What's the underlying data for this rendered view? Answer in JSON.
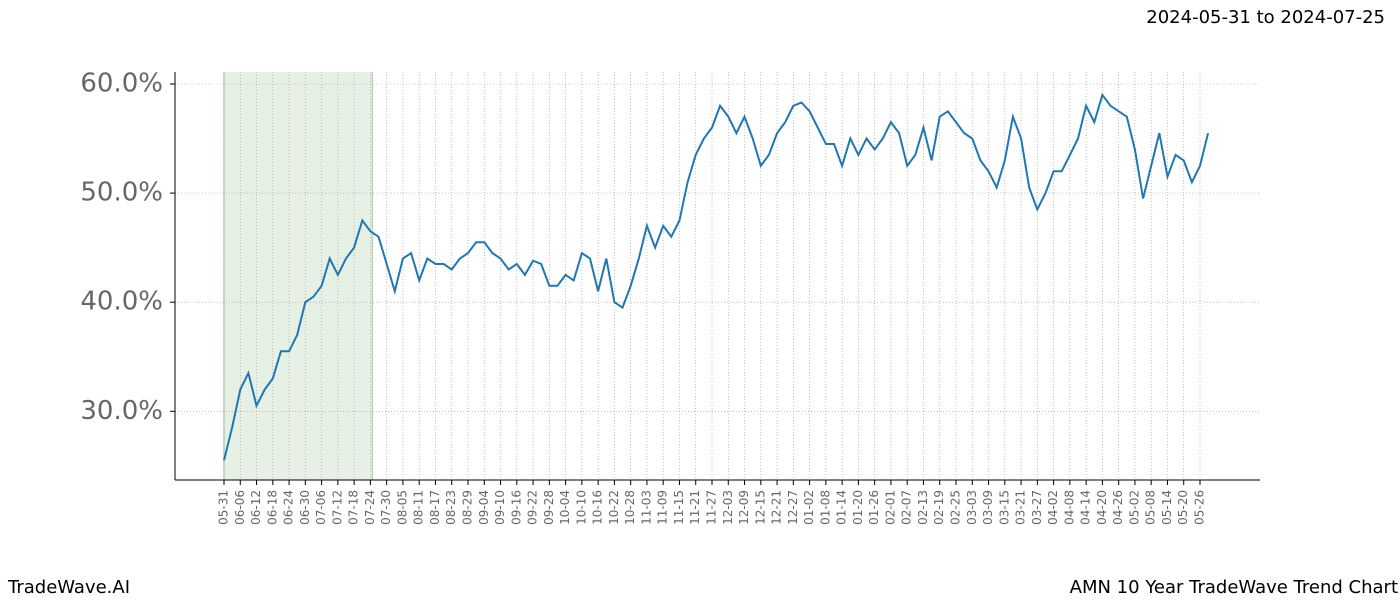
{
  "chart_data": {
    "type": "line",
    "title": "AMN 10 Year TradeWave Trend Chart",
    "subtitle": "2024-05-31 to 2024-07-25",
    "watermark": "TradeWave.AI",
    "categories": [
      "05-31",
      null,
      "06-06",
      null,
      "06-12",
      null,
      "06-18",
      null,
      "06-24",
      null,
      "06-30",
      null,
      "07-06",
      null,
      "07-12",
      null,
      "07-18",
      null,
      "07-24",
      null,
      "07-30",
      null,
      "08-05",
      null,
      "08-11",
      null,
      "08-17",
      null,
      "08-23",
      null,
      "08-29",
      null,
      "09-04",
      null,
      "09-10",
      null,
      "09-16",
      null,
      "09-22",
      null,
      "09-28",
      null,
      "10-04",
      null,
      "10-10",
      null,
      "10-16",
      null,
      "10-22",
      null,
      "10-28",
      null,
      "11-03",
      null,
      "11-09",
      null,
      "11-15",
      null,
      "11-21",
      null,
      "11-27",
      null,
      "12-03",
      null,
      "12-09",
      null,
      "12-15",
      null,
      "12-21",
      null,
      "12-27",
      null,
      "01-02",
      null,
      "01-08",
      null,
      "01-14",
      null,
      "01-20",
      null,
      "01-26",
      null,
      "02-01",
      null,
      "02-07",
      null,
      "02-13",
      null,
      "02-19",
      null,
      "02-25",
      null,
      "03-03",
      null,
      "03-09",
      null,
      "03-15",
      null,
      "03-21",
      null,
      "03-27",
      null,
      "04-02",
      null,
      "04-08",
      null,
      "04-14",
      null,
      "04-20",
      null,
      "04-26",
      null,
      "05-02",
      null,
      "05-08",
      null,
      "05-14",
      null,
      "05-20",
      null,
      "05-26",
      null
    ],
    "values": [
      25.5,
      28.5,
      32,
      33.5,
      30.5,
      32,
      33,
      35.5,
      35.5,
      37,
      40,
      40.5,
      41.5,
      44,
      42.5,
      44,
      45,
      47.5,
      46.5,
      46,
      43.5,
      41,
      44,
      44.5,
      42,
      44,
      43.5,
      43.5,
      43,
      44,
      44.5,
      45.5,
      45.5,
      44.5,
      44,
      43,
      43.5,
      42.5,
      43.8,
      43.5,
      41.5,
      41.5,
      42.5,
      42,
      44.5,
      44,
      41,
      44,
      40,
      39.5,
      41.5,
      44,
      47,
      45,
      47,
      46,
      47.5,
      51,
      53.5,
      55,
      56,
      58,
      57,
      55.5,
      57,
      55,
      52.5,
      53.5,
      55.5,
      56.5,
      58,
      58.3,
      57.5,
      56,
      54.5,
      54.5,
      52.5,
      55,
      53.5,
      55,
      54,
      55,
      56.5,
      55.5,
      52.5,
      53.5,
      56,
      53,
      57,
      57.5,
      56.5,
      55.5,
      55,
      53,
      52,
      50.5,
      53,
      57,
      55,
      50.5,
      48.5,
      50,
      52,
      52,
      53.5,
      55,
      58,
      56.5,
      59,
      58,
      57.5,
      57,
      54,
      49.5,
      52.5,
      55.5,
      51.5,
      53.5,
      53,
      51,
      52.5,
      55.5
    ],
    "color": "#1f77b4",
    "highlight": [
      0,
      18
    ],
    "ylim": [
      23.7,
      61.1
    ],
    "yticks": [
      {
        "value": 30,
        "label": "30.0%"
      },
      {
        "value": 40,
        "label": "40.0%"
      },
      {
        "value": 50,
        "label": "50.0%"
      },
      {
        "value": 60,
        "label": "60.0%"
      }
    ],
    "grid": true
  }
}
